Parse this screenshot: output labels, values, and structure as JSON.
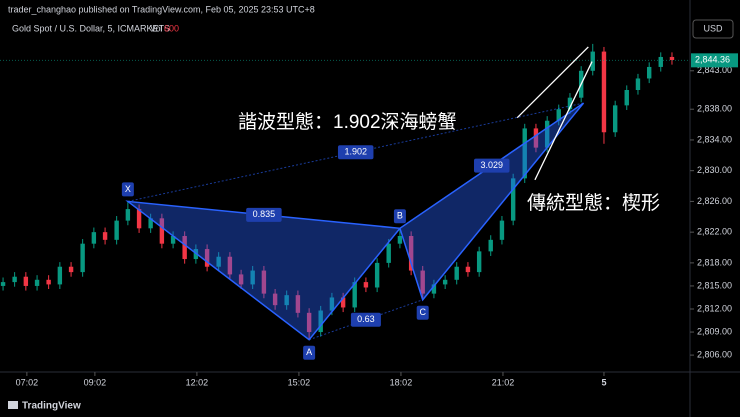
{
  "chart_data": {
    "type": "candlestick",
    "published": "trader_changhao published on TradingView.com, Feb 05, 2025 23:53 UTC+8",
    "title": "Gold Spot / U.S. Dollar, 5, ICMARKETS",
    "volume_label": "Vol",
    "volume": 600,
    "currency": "USD",
    "brand": "TradingView",
    "up_color": "#089981",
    "down_color": "#f23645",
    "xlim": [
      6.24,
      26.53
    ],
    "ylim": [
      2803.8,
      2850.0
    ],
    "xticks": [
      {
        "value": 7.03,
        "label": "07:02"
      },
      {
        "value": 9.03,
        "label": "09:02"
      },
      {
        "value": 12.03,
        "label": "12:02"
      },
      {
        "value": 15.03,
        "label": "15:02"
      },
      {
        "value": 18.03,
        "label": "18:02"
      },
      {
        "value": 21.03,
        "label": "21:02"
      },
      {
        "value": 24,
        "label": "5"
      }
    ],
    "yticks": [
      {
        "value": 2843,
        "label": "2,843.00"
      },
      {
        "value": 2838,
        "label": "2,838.00"
      },
      {
        "value": 2834,
        "label": "2,834.00"
      },
      {
        "value": 2830,
        "label": "2,830.00"
      },
      {
        "value": 2826,
        "label": "2,826.00"
      },
      {
        "value": 2822,
        "label": "2,822.00"
      },
      {
        "value": 2818,
        "label": "2,818.00"
      },
      {
        "value": 2815,
        "label": "2,815.00"
      },
      {
        "value": 2812,
        "label": "2,812.00"
      },
      {
        "value": 2809,
        "label": "2,809.00"
      },
      {
        "value": 2806,
        "label": "2,806.00"
      }
    ],
    "last_price": {
      "value": 2844.36,
      "label": "2,844.36"
    },
    "x": [
      6.33,
      6.67,
      7,
      7.33,
      7.67,
      8,
      8.33,
      8.67,
      9,
      9.33,
      9.67,
      10,
      10.33,
      10.67,
      11,
      11.33,
      11.67,
      12,
      12.33,
      12.67,
      13,
      13.33,
      13.67,
      14,
      14.33,
      14.67,
      15,
      15.33,
      15.67,
      16,
      16.33,
      16.67,
      17,
      17.33,
      17.67,
      18,
      18.33,
      18.67,
      19,
      19.33,
      19.67,
      20,
      20.33,
      20.67,
      21,
      21.33,
      21.67,
      22,
      22.33,
      22.67,
      23,
      23.33,
      23.67,
      24,
      24.33,
      24.67,
      25,
      25.33,
      25.67,
      26
    ],
    "open": [
      2815.0,
      2815.5,
      2816.2,
      2815.0,
      2815.8,
      2815.2,
      2817.5,
      2816.8,
      2820.5,
      2822.0,
      2821.0,
      2823.5,
      2825.0,
      2822.5,
      2823.8,
      2820.5,
      2821.5,
      2818.5,
      2819.8,
      2817.5,
      2818.8,
      2816.5,
      2815.2,
      2817.0,
      2814.0,
      2812.5,
      2813.8,
      2811.5,
      2809.0,
      2811.8,
      2813.5,
      2812.2,
      2815.5,
      2814.8,
      2818.0,
      2820.5,
      2821.5,
      2817.0,
      2814.0,
      2815.2,
      2815.8,
      2817.5,
      2816.8,
      2819.5,
      2821.0,
      2823.5,
      2829.0,
      2835.5,
      2833.0,
      2836.5,
      2838.0,
      2839.5,
      2843.0,
      2845.5,
      2835.0,
      2838.5,
      2840.5,
      2842.0,
      2843.5,
      2844.8
    ],
    "high": [
      2816.1,
      2816.8,
      2816.8,
      2816.4,
      2816.4,
      2818.1,
      2818.1,
      2821.1,
      2822.6,
      2822.6,
      2824.1,
      2826.0,
      2825.6,
      2824.4,
      2824.4,
      2822.1,
      2822.1,
      2820.4,
      2820.4,
      2819.4,
      2819.4,
      2817.1,
      2817.6,
      2817.6,
      2814.6,
      2814.4,
      2814.4,
      2812.1,
      2812.4,
      2814.1,
      2814.1,
      2816.1,
      2816.1,
      2818.6,
      2821.1,
      2822.5,
      2822.1,
      2817.6,
      2815.8,
      2816.4,
      2818.1,
      2818.1,
      2820.1,
      2821.6,
      2824.1,
      2829.6,
      2836.1,
      2836.1,
      2837.1,
      2838.6,
      2840.1,
      2843.6,
      2846.5,
      2846.1,
      2839.1,
      2841.1,
      2842.6,
      2844.1,
      2845.4,
      2845.4
    ],
    "low": [
      2814.4,
      2814.9,
      2814.4,
      2814.4,
      2814.6,
      2814.6,
      2816.2,
      2816.2,
      2819.9,
      2820.4,
      2820.4,
      2822.9,
      2821.9,
      2821.9,
      2819.9,
      2819.9,
      2817.9,
      2817.9,
      2816.9,
      2816.9,
      2815.9,
      2814.6,
      2814.6,
      2813.4,
      2811.9,
      2811.9,
      2810.9,
      2808.0,
      2808.4,
      2811.2,
      2811.6,
      2811.6,
      2814.2,
      2814.2,
      2817.4,
      2819.9,
      2816.4,
      2813.2,
      2813.4,
      2814.6,
      2815.2,
      2816.2,
      2816.2,
      2818.9,
      2820.4,
      2822.9,
      2828.4,
      2832.4,
      2832.4,
      2835.9,
      2837.4,
      2838.9,
      2842.4,
      2833.5,
      2834.4,
      2837.9,
      2839.9,
      2841.4,
      2842.9,
      2843.8
    ],
    "close": [
      2815.5,
      2816.2,
      2815.0,
      2815.8,
      2815.2,
      2817.5,
      2816.8,
      2820.5,
      2822.0,
      2821.0,
      2823.5,
      2825.0,
      2822.5,
      2823.8,
      2820.5,
      2821.5,
      2818.5,
      2819.8,
      2817.5,
      2818.8,
      2816.5,
      2815.2,
      2817.0,
      2814.0,
      2812.5,
      2813.8,
      2811.5,
      2809.0,
      2811.8,
      2813.5,
      2812.2,
      2815.5,
      2814.8,
      2818.0,
      2820.5,
      2821.5,
      2817.0,
      2814.0,
      2815.2,
      2815.8,
      2817.5,
      2816.8,
      2819.5,
      2821.0,
      2823.5,
      2829.0,
      2835.5,
      2833.0,
      2836.5,
      2838.0,
      2839.5,
      2843.0,
      2845.5,
      2835.0,
      2838.5,
      2840.5,
      2842.0,
      2843.5,
      2844.8,
      2844.4
    ],
    "pattern": {
      "color": "#2962ff",
      "points": [
        {
          "label": "X",
          "x": 10.0,
          "y": 2826.0
        },
        {
          "label": "A",
          "x": 15.33,
          "y": 2808.0
        },
        {
          "label": "B",
          "x": 18.0,
          "y": 2822.5
        },
        {
          "label": "C",
          "x": 18.67,
          "y": 2813.2
        },
        {
          "x": 23.4,
          "y": 2838.8
        }
      ],
      "ratios": [
        0.835,
        1.902,
        0.63,
        3.029
      ]
    },
    "wedge": [
      {
        "x": [
          21.45,
          23.54
        ],
        "y": [
          2836.9,
          2846.1
        ]
      },
      {
        "x": [
          21.97,
          23.65
        ],
        "y": [
          2828.8,
          2844.2
        ]
      }
    ],
    "annotations": [
      "諧波型態：1.902深海螃蟹",
      "傳統型態：楔形"
    ]
  }
}
